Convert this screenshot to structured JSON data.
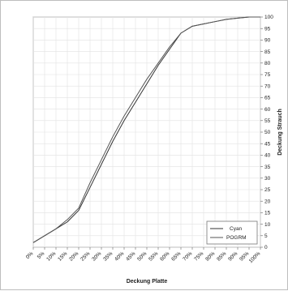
{
  "chart_data": {
    "type": "line",
    "title": "",
    "xlabel": "Deckung Platte",
    "ylabel": "Deckung Strauch",
    "x": [
      0,
      5,
      10,
      15,
      20,
      25,
      30,
      35,
      40,
      45,
      50,
      55,
      60,
      65,
      70,
      75,
      80,
      85,
      90,
      95,
      100
    ],
    "x_tick_labels": [
      "0%",
      "5%",
      "10%",
      "15%",
      "20%",
      "25%",
      "30%",
      "35%",
      "40%",
      "45%",
      "50%",
      "55%",
      "60%",
      "65%",
      "70%",
      "75%",
      "80%",
      "85%",
      "90%",
      "95%",
      "100%"
    ],
    "ylim": [
      0,
      100
    ],
    "y_ticks": [
      0,
      5,
      10,
      15,
      20,
      25,
      30,
      35,
      40,
      45,
      50,
      55,
      60,
      65,
      70,
      75,
      80,
      85,
      90,
      95,
      100
    ],
    "grid": true,
    "legend_position": "bottom-right",
    "series": [
      {
        "name": "Cyan",
        "color": "#333333",
        "values": [
          2,
          5,
          8,
          11,
          16,
          26,
          36,
          46,
          55,
          63,
          71,
          79,
          86,
          93,
          96,
          97,
          98,
          99,
          99.5,
          100,
          100
        ]
      },
      {
        "name": "POGRM",
        "color": "#555555",
        "values": [
          2,
          5,
          8,
          12,
          17,
          28,
          38,
          48,
          57,
          65,
          73,
          80,
          87,
          93,
          96,
          97,
          98,
          99,
          99.5,
          100,
          100
        ]
      }
    ]
  }
}
